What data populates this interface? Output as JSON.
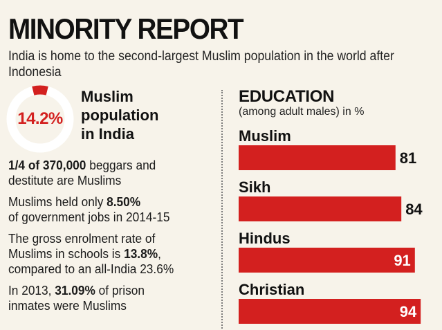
{
  "header": {
    "title": "MINORITY REPORT",
    "subtitle": "India is home to the second-largest Muslim population in the world after Indonesia"
  },
  "population": {
    "percent_label": "14.2%",
    "percent_value": 14.2,
    "caption_line1": "Muslim",
    "caption_line2": "population",
    "caption_line3": "in India"
  },
  "facts": [
    {
      "bold": "1/4 of 370,000",
      "text": " beggars and",
      "text2": "destitute are Muslims"
    },
    {
      "pre": "Muslims held only ",
      "bold": "8.50%",
      "text2": "of government jobs in 2014-15"
    },
    {
      "pre": "The gross enrolment rate of",
      "pre2": "Muslims in schools is ",
      "bold": "13.8%",
      "post2": ",",
      "text3": "compared to an all-India 23.6%"
    },
    {
      "pre": "In 2013, ",
      "bold": "31.09%",
      "post": " of prison",
      "text2": "inmates were Muslims"
    }
  ],
  "colors": {
    "accent": "#d3201f",
    "ring": "#ffffff",
    "background": "#f7f3ea"
  },
  "chart_data": {
    "type": "bar",
    "title": "EDUCATION",
    "subtitle": "(among adult males) in %",
    "orientation": "horizontal",
    "categories": [
      "Muslim",
      "Sikh",
      "Hindus",
      "Christian"
    ],
    "values": [
      81,
      84,
      91,
      94
    ],
    "xlim": [
      0,
      100
    ],
    "grid": false,
    "legend": "none"
  }
}
